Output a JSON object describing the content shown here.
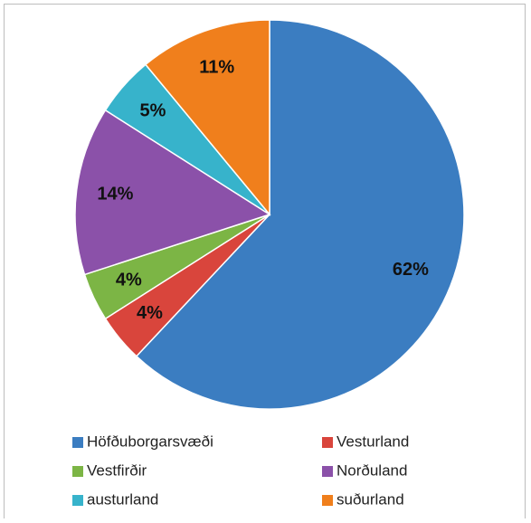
{
  "chart_data": {
    "type": "pie",
    "categories": [
      "Höfðuborgarsvæði",
      "Vesturland",
      "Vestfirðir",
      "Norðuland",
      "austurland",
      "suðurland"
    ],
    "values": [
      62,
      4,
      4,
      14,
      5,
      11
    ],
    "value_labels": [
      "62%",
      "4%",
      "4%",
      "14%",
      "5%",
      "11%"
    ],
    "colors": [
      "#3b7dc1",
      "#d9453c",
      "#7cb545",
      "#8b51a9",
      "#37b3cb",
      "#f07f1c"
    ],
    "legend": "bottom"
  }
}
